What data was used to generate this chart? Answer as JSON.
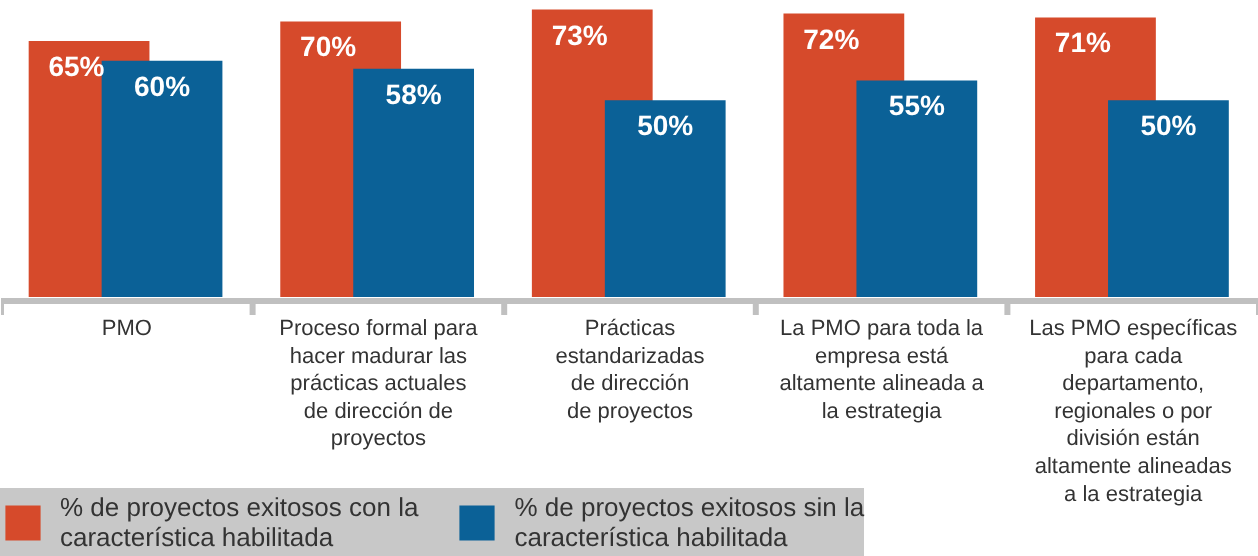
{
  "chart_data": {
    "type": "bar",
    "categories": [
      "PMO",
      "Proceso formal para hacer madurar las prácticas actuales de dirección de proyectos",
      "Prácticas estandarizadas de dirección de proyectos",
      "La PMO para toda la empresa está altamente alineada a la estrategia",
      "Las PMO específicas para cada departamento, regionales o por división están altamente alineadas a la estrategia"
    ],
    "series": [
      {
        "name": "% de proyectos exitosos con la característica habilitada",
        "color": "#d64a2b",
        "values": [
          65,
          70,
          73,
          72,
          71
        ],
        "value_labels": [
          "65%",
          "70%",
          "73%",
          "72%",
          "71%"
        ]
      },
      {
        "name": "% de proyectos exitosos sin la característica habilitada",
        "color": "#0b6197",
        "values": [
          60,
          58,
          50,
          55,
          50
        ],
        "value_labels": [
          "60%",
          "58%",
          "50%",
          "55%",
          "50%"
        ]
      }
    ],
    "legend": "bottom left",
    "grid": false
  }
}
